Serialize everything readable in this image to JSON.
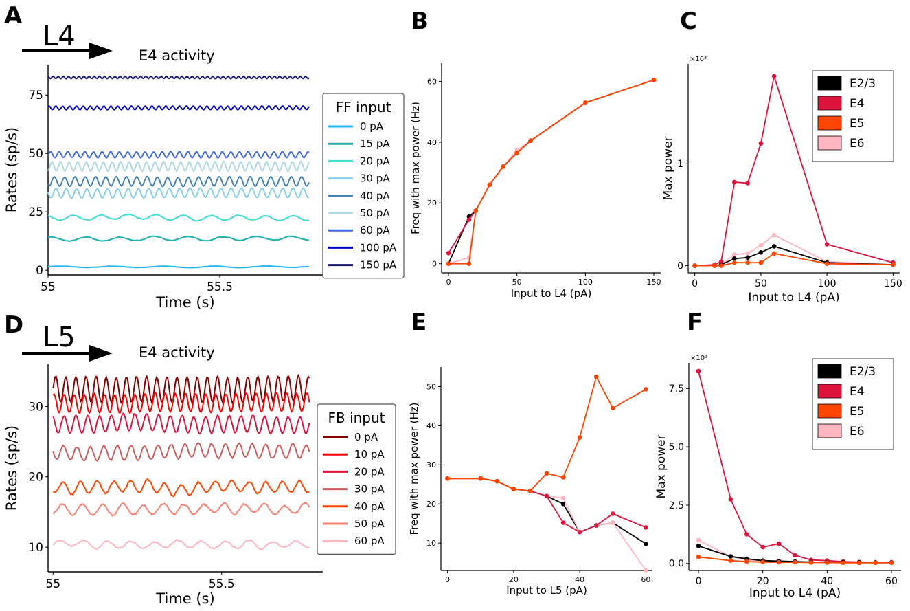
{
  "colors": {
    "E2/3": "#000000",
    "E4": "#dc143c",
    "E5": "#ff4500",
    "E6": "#ffb6c1"
  },
  "chart_data": [
    {
      "panel": "A",
      "type": "line",
      "title": "E4 activity",
      "arrow_label": "L4",
      "xlabel": "Time (s)",
      "ylabel": "Rates (sp/s)",
      "xlim": [
        55.0,
        55.8
      ],
      "ylim": [
        -2,
        88
      ],
      "xticks": [
        55,
        55.5
      ],
      "xtick_labels": [
        "55",
        "55.5"
      ],
      "yticks": [
        0,
        25,
        50,
        75
      ],
      "legend_title": "FF input",
      "series": [
        {
          "name": "0 pA",
          "color": "#1fb6f0",
          "mean": 1.5,
          "amp": 0.3,
          "period": 0.15,
          "noise": 0.15
        },
        {
          "name": "15 pA",
          "color": "#20b2aa",
          "mean": 13.5,
          "amp": 0.8,
          "period": 0.1,
          "noise": 0.5
        },
        {
          "name": "20 pA",
          "color": "#40e0d0",
          "mean": 22.5,
          "amp": 1.0,
          "period": 0.08,
          "noise": 0.6
        },
        {
          "name": "30 pA",
          "color": "#87ceeb",
          "mean": 33.0,
          "amp": 2.0,
          "period": 0.03,
          "noise": 0.3
        },
        {
          "name": "40 pA",
          "color": "#4682b4",
          "mean": 38.0,
          "amp": 2.0,
          "period": 0.03,
          "noise": 0.3
        },
        {
          "name": "50 pA",
          "color": "#add8e6",
          "mean": 44.5,
          "amp": 2.0,
          "period": 0.025,
          "noise": 0.3
        },
        {
          "name": "60 pA",
          "color": "#4169e1",
          "mean": 49.5,
          "amp": 1.3,
          "period": 0.025,
          "noise": 0.2
        },
        {
          "name": "100 pA",
          "color": "#0000cd",
          "mean": 69.5,
          "amp": 0.8,
          "period": 0.02,
          "noise": 0.1
        },
        {
          "name": "150 pA",
          "color": "#191970",
          "mean": 82.5,
          "amp": 0.5,
          "period": 0.015,
          "noise": 0.1
        }
      ]
    },
    {
      "panel": "B",
      "type": "line",
      "xlabel": "Input to L4 (pA)",
      "ylabel": "Freq with max power (Hz)",
      "xlim": [
        -5,
        155
      ],
      "ylim": [
        -3,
        66
      ],
      "xticks": [
        0,
        50,
        100,
        150
      ],
      "yticks": [
        0,
        20,
        40,
        60
      ],
      "x": [
        0,
        15,
        20,
        30,
        40,
        50,
        60,
        100,
        150
      ],
      "series": [
        {
          "name": "E2/3",
          "values": [
            0,
            15.5,
            17.5,
            26,
            32,
            36.5,
            40.5,
            53,
            60.5
          ]
        },
        {
          "name": "E4",
          "values": [
            3.5,
            14.5,
            17.5,
            26,
            32,
            36.5,
            40.5,
            53,
            60.5
          ]
        },
        {
          "name": "E6",
          "values": [
            0,
            2,
            17.5,
            26,
            32,
            37.5,
            40.5,
            53,
            60.5
          ]
        },
        {
          "name": "E5",
          "values": [
            0,
            0,
            17.5,
            26,
            32,
            36.5,
            40.5,
            53,
            60.5
          ]
        }
      ]
    },
    {
      "panel": "C",
      "type": "line",
      "xlabel": "Input to L4 (pA)",
      "ylabel": "Max power",
      "scale_label": "×10²",
      "xlim": [
        -5,
        155
      ],
      "ylim": [
        -0.07,
        1.98
      ],
      "xticks": [
        0,
        50,
        100,
        150
      ],
      "yticks": [
        0,
        1
      ],
      "x": [
        0,
        15,
        20,
        30,
        40,
        50,
        60,
        100,
        150
      ],
      "legend": [
        "E2/3",
        "E4",
        "E5",
        "E6"
      ],
      "series": [
        {
          "name": "E4",
          "values": [
            0,
            0.01,
            0.04,
            0.82,
            0.81,
            1.2,
            1.86,
            0.21,
            0.03
          ]
        },
        {
          "name": "E6",
          "values": [
            0,
            0,
            0.01,
            0.11,
            0.12,
            0.2,
            0.3,
            0.04,
            0.01
          ]
        },
        {
          "name": "E2/3",
          "values": [
            0,
            0,
            0.01,
            0.07,
            0.08,
            0.13,
            0.19,
            0.03,
            0.01
          ]
        },
        {
          "name": "E5",
          "values": [
            0,
            0,
            0,
            0.03,
            0.03,
            0.03,
            0.12,
            0.02,
            0.01
          ]
        }
      ]
    },
    {
      "panel": "D",
      "type": "line",
      "title": "E4 activity",
      "arrow_label": "L5",
      "xlabel": "Time (s)",
      "ylabel": "Rates (sp/s)",
      "xlim": [
        54.985,
        55.8
      ],
      "ylim": [
        6.5,
        36
      ],
      "xticks": [
        55,
        55.5
      ],
      "xtick_labels": [
        "55",
        "55.5"
      ],
      "yticks": [
        10,
        20,
        30
      ],
      "legend_title": "FB input",
      "series": [
        {
          "name": "0 pA",
          "color": "#8b0000",
          "mean": 32.5,
          "amp": 1.8,
          "period": 0.03,
          "noise": 0.3
        },
        {
          "name": "10 pA",
          "color": "#ff0000",
          "mean": 30.5,
          "amp": 1.3,
          "period": 0.03,
          "noise": 0.3
        },
        {
          "name": "20 pA",
          "color": "#dc143c",
          "mean": 27.5,
          "amp": 1.2,
          "period": 0.035,
          "noise": 0.4
        },
        {
          "name": "30 pA",
          "color": "#cd5c5c",
          "mean": 23.5,
          "amp": 1.0,
          "period": 0.04,
          "noise": 0.4
        },
        {
          "name": "40 pA",
          "color": "#ff4500",
          "mean": 18.5,
          "amp": 0.8,
          "period": 0.05,
          "noise": 0.5
        },
        {
          "name": "50 pA",
          "color": "#fa8072",
          "mean": 15.5,
          "amp": 0.7,
          "period": 0.06,
          "noise": 0.5
        },
        {
          "name": "60 pA",
          "color": "#ffb6c1",
          "mean": 10.5,
          "amp": 0.5,
          "period": 0.07,
          "noise": 0.4
        }
      ]
    },
    {
      "panel": "E",
      "type": "line",
      "xlabel": "Input to L5 (pA)",
      "ylabel": "Freq with max power (Hz)",
      "xlim": [
        -2,
        62
      ],
      "ylim": [
        3,
        55
      ],
      "xticks": [
        0,
        20,
        40,
        60
      ],
      "yticks": [
        10,
        20,
        30,
        40,
        50
      ],
      "x": [
        0,
        10,
        15,
        20,
        25,
        30,
        35,
        40,
        45,
        50,
        60
      ],
      "series": [
        {
          "name": "E2/3",
          "values": [
            26.5,
            26.5,
            25.8,
            23.8,
            23.3,
            22,
            20,
            12.8,
            14.5,
            15.2,
            9.8
          ]
        },
        {
          "name": "E6",
          "values": [
            26.5,
            26.5,
            25.8,
            23.8,
            23.3,
            22,
            21.5,
            12.8,
            14.5,
            15.2,
            3
          ]
        },
        {
          "name": "E4",
          "values": [
            26.5,
            26.5,
            25.8,
            23.8,
            23.3,
            22,
            15.2,
            12.8,
            14.5,
            17.5,
            14
          ]
        },
        {
          "name": "E5",
          "values": [
            26.5,
            26.5,
            25.8,
            23.8,
            23.3,
            27.8,
            26.8,
            37,
            52.5,
            44.5,
            49.3
          ]
        }
      ]
    },
    {
      "panel": "F",
      "type": "line",
      "xlabel": "Input to L4 (pA)",
      "ylabel": "Max power",
      "scale_label": "×10¹",
      "xlim": [
        -3,
        63
      ],
      "ylim": [
        -0.3,
        8.6
      ],
      "xticks": [
        0,
        20,
        40,
        60
      ],
      "yticks": [
        0,
        2.5,
        5,
        7.5
      ],
      "ytick_labels": [
        "0.0",
        "2.5",
        "5.0",
        "7.5"
      ],
      "x": [
        0,
        10,
        15,
        20,
        25,
        30,
        35,
        40,
        45,
        50,
        55,
        60
      ],
      "legend": [
        "E2/3",
        "E4",
        "E5",
        "E6"
      ],
      "series": [
        {
          "name": "E4",
          "values": [
            8.25,
            2.75,
            1.25,
            0.7,
            0.85,
            0.35,
            0.15,
            0.12,
            0.08,
            0.06,
            0.05,
            0.05
          ]
        },
        {
          "name": "E6",
          "values": [
            1.0,
            0.3,
            0.15,
            0.1,
            0.08,
            0.06,
            0.05,
            0.05,
            0.04,
            0.04,
            0.03,
            0.03
          ]
        },
        {
          "name": "E2/3",
          "values": [
            0.75,
            0.3,
            0.2,
            0.12,
            0.1,
            0.08,
            0.06,
            0.05,
            0.05,
            0.05,
            0.04,
            0.04
          ]
        },
        {
          "name": "E5",
          "values": [
            0.28,
            0.12,
            0.08,
            0.06,
            0.05,
            0.05,
            0.04,
            0.04,
            0.03,
            0.03,
            0.03,
            0.03
          ]
        }
      ]
    }
  ]
}
